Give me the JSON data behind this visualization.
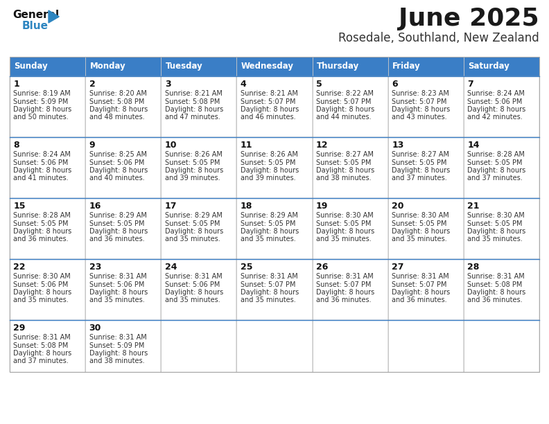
{
  "title": "June 2025",
  "subtitle": "Rosedale, Southland, New Zealand",
  "days_of_week": [
    "Sunday",
    "Monday",
    "Tuesday",
    "Wednesday",
    "Thursday",
    "Friday",
    "Saturday"
  ],
  "header_bg": "#3A7EC6",
  "header_text": "#FFFFFF",
  "cell_bg": "#FFFFFF",
  "cell_bg_alt": "#F5F5F5",
  "text_color": "#333333",
  "day_num_color": "#111111",
  "border_color": "#AAAAAA",
  "row_divider_color": "#3A7EC6",
  "title_color": "#1a1a1a",
  "subtitle_color": "#333333",
  "calendar": [
    [
      {
        "day": 1,
        "sunrise": "8:19 AM",
        "sunset": "5:09 PM",
        "daylight": "8 hours and 50 minutes."
      },
      {
        "day": 2,
        "sunrise": "8:20 AM",
        "sunset": "5:08 PM",
        "daylight": "8 hours and 48 minutes."
      },
      {
        "day": 3,
        "sunrise": "8:21 AM",
        "sunset": "5:08 PM",
        "daylight": "8 hours and 47 minutes."
      },
      {
        "day": 4,
        "sunrise": "8:21 AM",
        "sunset": "5:07 PM",
        "daylight": "8 hours and 46 minutes."
      },
      {
        "day": 5,
        "sunrise": "8:22 AM",
        "sunset": "5:07 PM",
        "daylight": "8 hours and 44 minutes."
      },
      {
        "day": 6,
        "sunrise": "8:23 AM",
        "sunset": "5:07 PM",
        "daylight": "8 hours and 43 minutes."
      },
      {
        "day": 7,
        "sunrise": "8:24 AM",
        "sunset": "5:06 PM",
        "daylight": "8 hours and 42 minutes."
      }
    ],
    [
      {
        "day": 8,
        "sunrise": "8:24 AM",
        "sunset": "5:06 PM",
        "daylight": "8 hours and 41 minutes."
      },
      {
        "day": 9,
        "sunrise": "8:25 AM",
        "sunset": "5:06 PM",
        "daylight": "8 hours and 40 minutes."
      },
      {
        "day": 10,
        "sunrise": "8:26 AM",
        "sunset": "5:05 PM",
        "daylight": "8 hours and 39 minutes."
      },
      {
        "day": 11,
        "sunrise": "8:26 AM",
        "sunset": "5:05 PM",
        "daylight": "8 hours and 39 minutes."
      },
      {
        "day": 12,
        "sunrise": "8:27 AM",
        "sunset": "5:05 PM",
        "daylight": "8 hours and 38 minutes."
      },
      {
        "day": 13,
        "sunrise": "8:27 AM",
        "sunset": "5:05 PM",
        "daylight": "8 hours and 37 minutes."
      },
      {
        "day": 14,
        "sunrise": "8:28 AM",
        "sunset": "5:05 PM",
        "daylight": "8 hours and 37 minutes."
      }
    ],
    [
      {
        "day": 15,
        "sunrise": "8:28 AM",
        "sunset": "5:05 PM",
        "daylight": "8 hours and 36 minutes."
      },
      {
        "day": 16,
        "sunrise": "8:29 AM",
        "sunset": "5:05 PM",
        "daylight": "8 hours and 36 minutes."
      },
      {
        "day": 17,
        "sunrise": "8:29 AM",
        "sunset": "5:05 PM",
        "daylight": "8 hours and 35 minutes."
      },
      {
        "day": 18,
        "sunrise": "8:29 AM",
        "sunset": "5:05 PM",
        "daylight": "8 hours and 35 minutes."
      },
      {
        "day": 19,
        "sunrise": "8:30 AM",
        "sunset": "5:05 PM",
        "daylight": "8 hours and 35 minutes."
      },
      {
        "day": 20,
        "sunrise": "8:30 AM",
        "sunset": "5:05 PM",
        "daylight": "8 hours and 35 minutes."
      },
      {
        "day": 21,
        "sunrise": "8:30 AM",
        "sunset": "5:05 PM",
        "daylight": "8 hours and 35 minutes."
      }
    ],
    [
      {
        "day": 22,
        "sunrise": "8:30 AM",
        "sunset": "5:06 PM",
        "daylight": "8 hours and 35 minutes."
      },
      {
        "day": 23,
        "sunrise": "8:31 AM",
        "sunset": "5:06 PM",
        "daylight": "8 hours and 35 minutes."
      },
      {
        "day": 24,
        "sunrise": "8:31 AM",
        "sunset": "5:06 PM",
        "daylight": "8 hours and 35 minutes."
      },
      {
        "day": 25,
        "sunrise": "8:31 AM",
        "sunset": "5:07 PM",
        "daylight": "8 hours and 35 minutes."
      },
      {
        "day": 26,
        "sunrise": "8:31 AM",
        "sunset": "5:07 PM",
        "daylight": "8 hours and 36 minutes."
      },
      {
        "day": 27,
        "sunrise": "8:31 AM",
        "sunset": "5:07 PM",
        "daylight": "8 hours and 36 minutes."
      },
      {
        "day": 28,
        "sunrise": "8:31 AM",
        "sunset": "5:08 PM",
        "daylight": "8 hours and 36 minutes."
      }
    ],
    [
      {
        "day": 29,
        "sunrise": "8:31 AM",
        "sunset": "5:08 PM",
        "daylight": "8 hours and 37 minutes."
      },
      {
        "day": 30,
        "sunrise": "8:31 AM",
        "sunset": "5:09 PM",
        "daylight": "8 hours and 38 minutes."
      },
      null,
      null,
      null,
      null,
      null
    ]
  ]
}
